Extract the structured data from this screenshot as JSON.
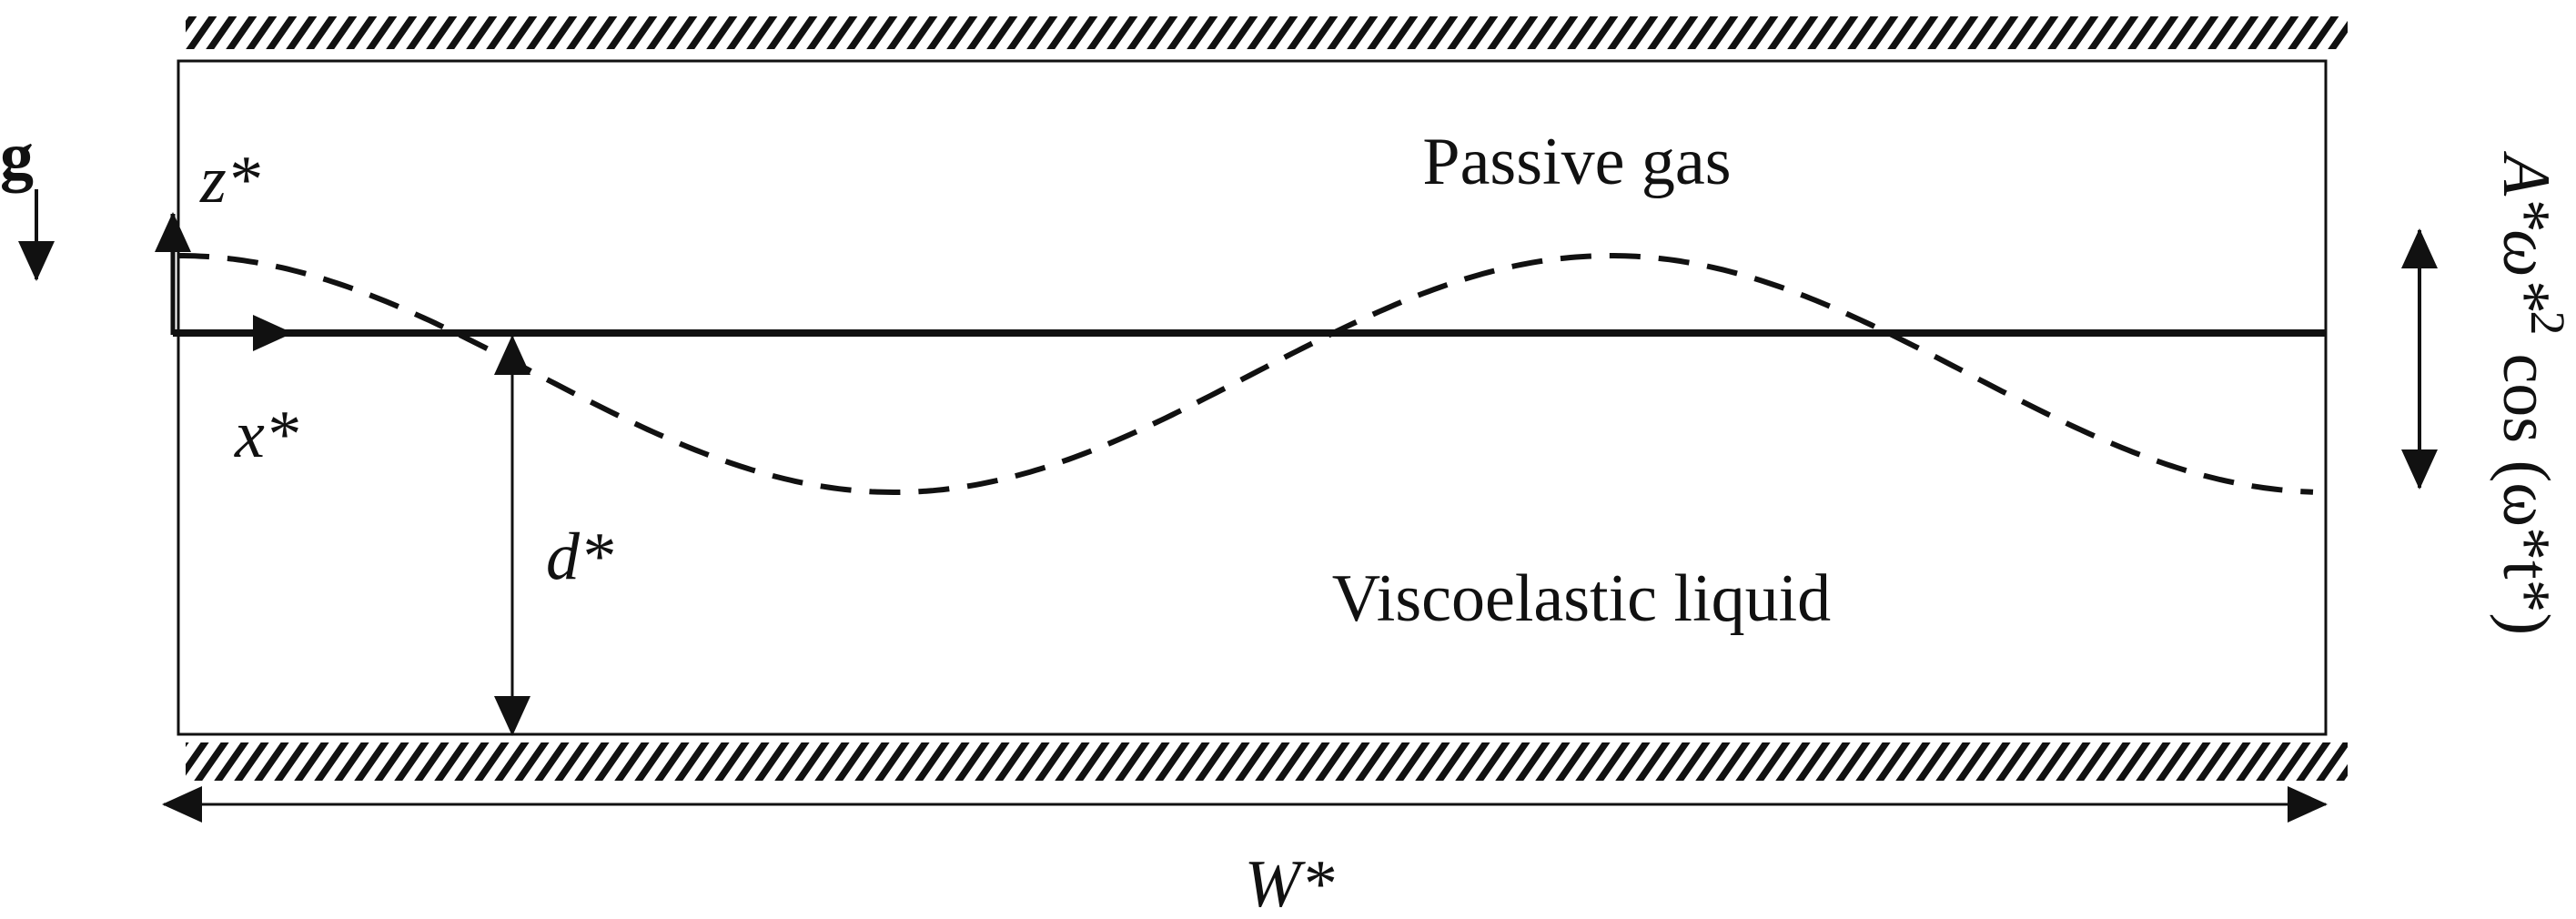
{
  "gravity": "g",
  "axes": {
    "z": "z*",
    "x": "x*"
  },
  "regions": {
    "gas": "Passive gas",
    "liquid": "Viscoelastic liquid"
  },
  "dimensions": {
    "depth": "d*",
    "width": "W*"
  },
  "forcing": {
    "base": "A*ω*",
    "exponent": "2",
    "rest": "cos (ω*t*)"
  }
}
